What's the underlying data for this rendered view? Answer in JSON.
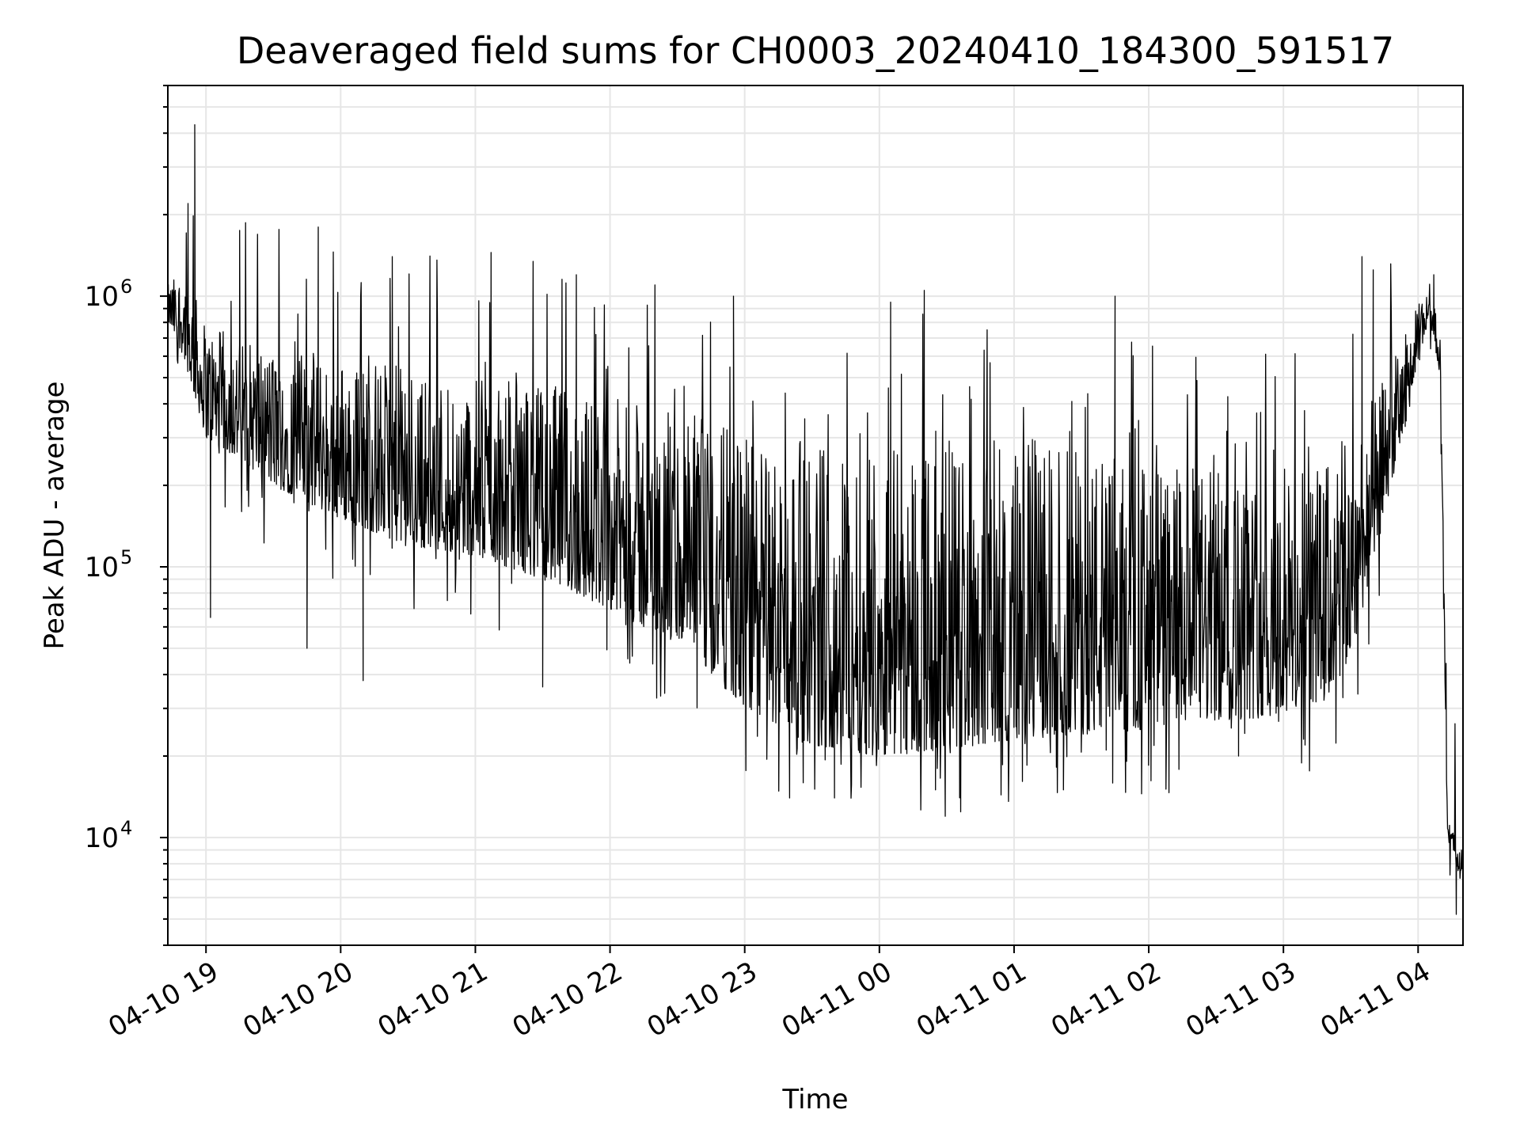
{
  "chart_data": {
    "type": "line",
    "title": "Deaveraged field sums for CH0003_20240410_184300_591517",
    "xlabel": "Time",
    "ylabel": "Peak ADU - average",
    "yscale": "log",
    "grid": true,
    "grid_minor": true,
    "line_color": "#000000",
    "xlim": [
      "2024-04-10 18:43",
      "2024-04-11 04:20"
    ],
    "ylim": [
      4000,
      6000000
    ],
    "x_ticks": [
      "04-10 19",
      "04-10 20",
      "04-10 21",
      "04-10 22",
      "04-10 23",
      "04-11 00",
      "04-11 01",
      "04-11 02",
      "04-11 03",
      "04-11 04"
    ],
    "x_tick_times": [
      "2024-04-10 19:00",
      "2024-04-10 20:00",
      "2024-04-10 21:00",
      "2024-04-10 22:00",
      "2024-04-10 23:00",
      "2024-04-11 00:00",
      "2024-04-11 01:00",
      "2024-04-11 02:00",
      "2024-04-11 03:00",
      "2024-04-11 04:00"
    ],
    "y_ticks": [
      {
        "value": 1000000,
        "base": "10",
        "exp": "6"
      },
      {
        "value": 100000,
        "base": "10",
        "exp": "5"
      },
      {
        "value": 10000,
        "base": "10",
        "exp": "4"
      }
    ],
    "envelope": {
      "time": [
        "2024-04-10 18:43",
        "2024-04-10 18:50",
        "2024-04-10 19:00",
        "2024-04-10 19:15",
        "2024-04-10 19:30",
        "2024-04-10 20:00",
        "2024-04-10 20:30",
        "2024-04-10 21:00",
        "2024-04-10 21:30",
        "2024-04-10 22:00",
        "2024-04-10 22:30",
        "2024-04-10 22:45",
        "2024-04-10 23:00",
        "2024-04-10 23:30",
        "2024-04-11 00:00",
        "2024-04-11 00:30",
        "2024-04-11 01:00",
        "2024-04-11 01:30",
        "2024-04-11 02:00",
        "2024-04-11 02:30",
        "2024-04-11 03:00",
        "2024-04-11 03:20",
        "2024-04-11 03:30",
        "2024-04-11 03:45",
        "2024-04-11 03:55",
        "2024-04-11 04:05",
        "2024-04-11 04:10",
        "2024-04-11 04:13",
        "2024-04-11 04:20"
      ],
      "low": [
        800000,
        600000,
        300000,
        250000,
        200000,
        150000,
        120000,
        110000,
        90000,
        70000,
        50000,
        40000,
        30000,
        22000,
        20000,
        21000,
        23000,
        24000,
        25000,
        27000,
        28000,
        33000,
        45000,
        160000,
        350000,
        850000,
        500000,
        10000,
        6500
      ],
      "high": [
        1100000,
        1300000,
        800000,
        700000,
        650000,
        600000,
        550000,
        500000,
        480000,
        420000,
        380000,
        350000,
        300000,
        300000,
        320000,
        320000,
        300000,
        280000,
        250000,
        230000,
        220000,
        250000,
        320000,
        500000,
        750000,
        1150000,
        700000,
        12000,
        9000
      ]
    },
    "peaks": [
      {
        "time": "2024-04-10 18:55",
        "value": 4300000
      },
      {
        "time": "2024-04-10 18:52",
        "value": 2200000
      },
      {
        "time": "2024-04-10 19:15",
        "value": 1750000
      },
      {
        "time": "2024-04-10 19:50",
        "value": 1800000
      },
      {
        "time": "2024-04-10 20:23",
        "value": 1400000
      },
      {
        "time": "2024-04-10 21:07",
        "value": 1450000
      },
      {
        "time": "2024-04-10 21:45",
        "value": 1200000
      },
      {
        "time": "2024-04-10 22:20",
        "value": 1100000
      },
      {
        "time": "2024-04-10 22:55",
        "value": 1000000
      },
      {
        "time": "2024-04-11 00:05",
        "value": 950000
      },
      {
        "time": "2024-04-11 00:20",
        "value": 1050000
      },
      {
        "time": "2024-04-11 01:45",
        "value": 1000000
      },
      {
        "time": "2024-04-11 03:35",
        "value": 1400000
      },
      {
        "time": "2024-04-11 03:40",
        "value": 1250000
      },
      {
        "time": "2024-04-11 04:07",
        "value": 1200000
      }
    ],
    "troughs": [
      {
        "time": "2024-04-10 19:02",
        "value": 65000
      },
      {
        "time": "2024-04-10 19:45",
        "value": 50000
      },
      {
        "time": "2024-04-10 20:10",
        "value": 38000
      },
      {
        "time": "2024-04-10 21:30",
        "value": 36000
      },
      {
        "time": "2024-04-10 23:20",
        "value": 14000
      },
      {
        "time": "2024-04-10 23:40",
        "value": 14000
      },
      {
        "time": "2024-04-11 00:25",
        "value": 15000
      },
      {
        "time": "2024-04-11 01:22",
        "value": 15000
      },
      {
        "time": "2024-04-11 02:40",
        "value": 20000
      },
      {
        "time": "2024-04-11 04:17",
        "value": 5200
      }
    ]
  }
}
